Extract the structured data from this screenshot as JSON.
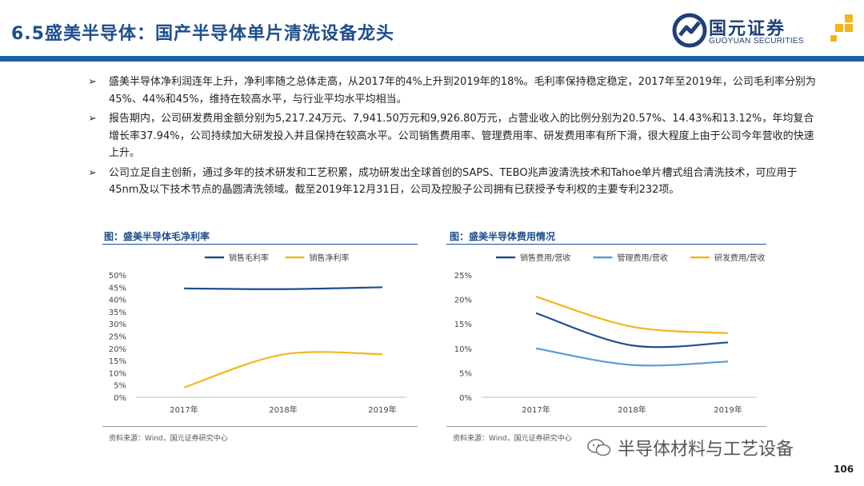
{
  "header": {
    "title": "6.5盛美半导体：国产半导体单片清洗设备龙头",
    "logo_name": "国元证券",
    "logo_en": "GUOYUAN SECURITIES",
    "accent_color": "#1c5fa8",
    "logo_gold": "#f2b61b"
  },
  "bullets": [
    "盛美半导体净利润连年上升，净利率随之总体走高，从2017年的4%上升到2019年的18%。毛利率保持稳定稳定，2017年至2019年，公司毛利率分别为45%、44%和45%，维持在较高水平，与行业平均水平均相当。",
    "报告期内，公司研发费用金额分别为5,217.24万元、7,941.50万元和9,926.80万元，占营业收入的比例分别为20.57%、14.43%和13.12%，年均复合增长率37.94%，公司持续加大研发投入并且保持在较高水平。公司销售费用率、管理费用率、研发费用率有所下滑，很大程度上由于公司今年营收的快速上升。",
    "公司立足自主创新，通过多年的技术研发和工艺积累，成功研发出全球首创的SAPS、TEBO兆声波清洗技术和Tahoe单片槽式组合清洗技术，可应用于45nm及以下技术节点的晶圆清洗领域。截至2019年12月31日，公司及控股子公司拥有已获授予专利权的主要专利232项。"
  ],
  "bullet_mark": "➢",
  "left_chart": {
    "heading": "图：盛美半导体毛净利率",
    "source": "资料来源：Wind，国元证券研究中心"
  },
  "right_chart": {
    "heading": "图：盛美半导体费用情况",
    "source": "资料来源：Wind，国元证券研究中心"
  },
  "chart_data": [
    {
      "type": "line",
      "title": "图：盛美半导体毛净利率",
      "categories": [
        "2017年",
        "2018年",
        "2019年"
      ],
      "ylim": [
        0,
        50
      ],
      "yticks": [
        0,
        5,
        10,
        15,
        20,
        25,
        30,
        35,
        40,
        45,
        50
      ],
      "ytick_labels": [
        "0%",
        "5%",
        "10%",
        "15%",
        "20%",
        "25%",
        "30%",
        "35%",
        "40%",
        "45%",
        "50%"
      ],
      "legend_position": "top",
      "series": [
        {
          "name": "销售毛利率",
          "values": [
            44.5,
            44.2,
            45.0
          ],
          "color": "#1f4e8c"
        },
        {
          "name": "销售净利率",
          "values": [
            4.0,
            17.5,
            17.6
          ],
          "color": "#f2b61b"
        }
      ]
    },
    {
      "type": "line",
      "title": "图：盛美半导体费用情况",
      "categories": [
        "2017年",
        "2018年",
        "2019年"
      ],
      "ylim": [
        0,
        25
      ],
      "yticks": [
        0,
        5,
        10,
        15,
        20,
        25
      ],
      "ytick_labels": [
        "0%",
        "5%",
        "10%",
        "15%",
        "20%",
        "25%"
      ],
      "legend_position": "top",
      "series": [
        {
          "name": "销售费用/营收",
          "values": [
            17.2,
            10.6,
            11.2
          ],
          "color": "#1f4e8c"
        },
        {
          "name": "管理费用/营收",
          "values": [
            10.0,
            6.6,
            7.3
          ],
          "color": "#5b9bd5"
        },
        {
          "name": "研发费用/营收",
          "values": [
            20.57,
            14.43,
            13.12
          ],
          "color": "#f2b61b"
        }
      ]
    }
  ],
  "watermark": "半导体材料与工艺设备",
  "page_number": "106"
}
